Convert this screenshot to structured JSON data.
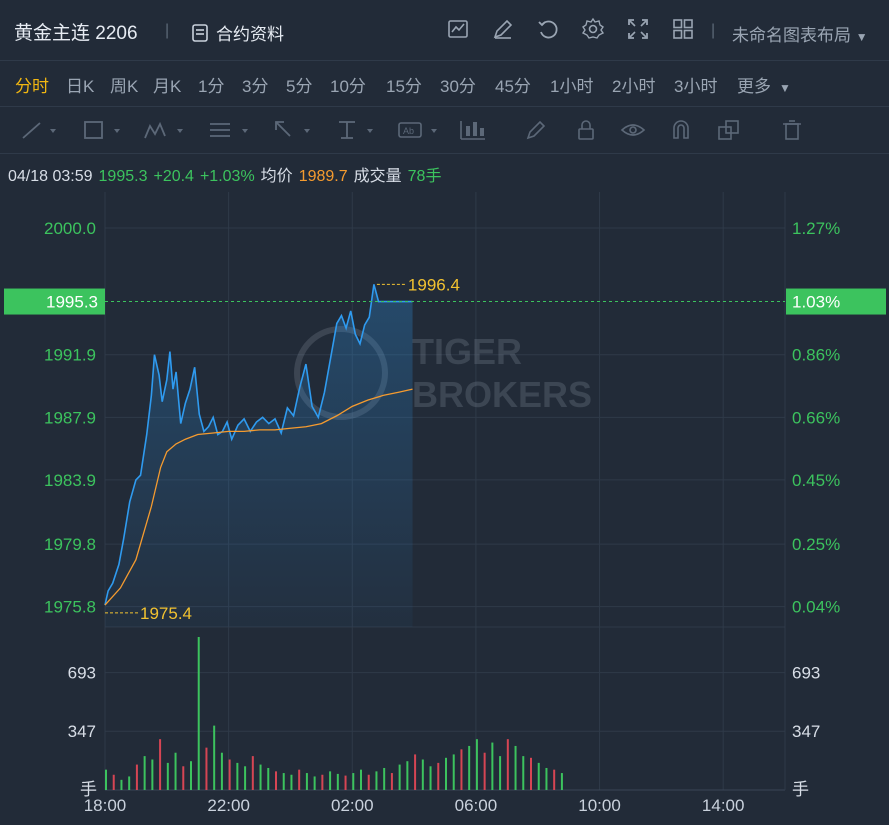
{
  "header": {
    "title": "黄金主连 2206",
    "contract_info": "合约资料",
    "layout_name": "未命名图表布局"
  },
  "periods": [
    "分时",
    "日K",
    "周K",
    "月K",
    "1分",
    "3分",
    "5分",
    "10分",
    "15分",
    "30分",
    "45分",
    "1小时",
    "2小时",
    "3小时",
    "更多"
  ],
  "active_period": "分时",
  "info_bar": {
    "datetime": "04/18 03:59",
    "price": "1995.3",
    "change": "+20.4",
    "change_pct": "+1.03%",
    "avg_label": "均价",
    "avg_value": "1989.7",
    "volume_label": "成交量",
    "volume_value": "78手"
  },
  "watermark": {
    "line1": "TIGER",
    "line2": "BROKERS"
  },
  "colors": {
    "up": "#3cc35e",
    "avg": "#f59b2f",
    "price_line": "#2f9bf0",
    "highlight": "#f2c230",
    "background": "#222b38"
  },
  "chart_data": {
    "type": "line",
    "price_axis": {
      "ticks": [
        "2000.0",
        "1991.9",
        "1987.9",
        "1983.9",
        "1979.8",
        "1975.8"
      ],
      "current": "1995.3"
    },
    "pct_axis": {
      "ticks": [
        "1.27%",
        "0.86%",
        "0.66%",
        "0.45%",
        "0.25%",
        "0.04%"
      ],
      "current": "1.03%"
    },
    "volume_axis": {
      "ticks": [
        "693",
        "347"
      ],
      "unit": "手"
    },
    "x_ticks": [
      "18:00",
      "22:00",
      "02:00",
      "06:00",
      "10:00",
      "14:00"
    ],
    "annotations": {
      "high": "1996.4",
      "low": "1975.4"
    },
    "x_range_hours": [
      0,
      22
    ],
    "ylim": [
      1974.5,
      2002.3
    ],
    "series": [
      {
        "name": "价格",
        "x": [
          0,
          0.1,
          0.25,
          0.45,
          0.6,
          0.8,
          1.0,
          1.15,
          1.35,
          1.5,
          1.6,
          1.75,
          1.85,
          2.0,
          2.1,
          2.2,
          2.3,
          2.45,
          2.6,
          2.75,
          2.9,
          3.05,
          3.2,
          3.35,
          3.5,
          3.65,
          3.8,
          3.95,
          4.1,
          4.3,
          4.5,
          4.7,
          4.9,
          5.1,
          5.3,
          5.5,
          5.7,
          5.9,
          6.1,
          6.3,
          6.5,
          6.7,
          6.9,
          7.1,
          7.3,
          7.5,
          7.65,
          7.8,
          7.95,
          8.1,
          8.25,
          8.4,
          8.55,
          8.7,
          8.85,
          9.0,
          9.2,
          9.4,
          9.6,
          9.8,
          9.95
        ],
        "values": [
          1975.9,
          1976.8,
          1977.3,
          1978.5,
          1980.1,
          1982.5,
          1983.9,
          1984.2,
          1986.8,
          1989.3,
          1991.9,
          1990.6,
          1988.9,
          1990.3,
          1992.1,
          1989.7,
          1990.8,
          1987.5,
          1988.8,
          1989.7,
          1991.1,
          1988.1,
          1987.0,
          1987.3,
          1987.9,
          1986.8,
          1987.0,
          1987.6,
          1986.5,
          1987.4,
          1987.8,
          1987.0,
          1987.6,
          1987.9,
          1987.5,
          1987.8,
          1986.9,
          1988.5,
          1988.0,
          1989.8,
          1991.3,
          1988.6,
          1987.9,
          1989.5,
          1991.7,
          1993.9,
          1994.4,
          1993.6,
          1994.7,
          1993.2,
          1992.6,
          1993.8,
          1994.3,
          1996.4,
          1995.3,
          1995.3,
          1995.3,
          1995.3,
          1995.3,
          1995.3,
          1995.3
        ]
      },
      {
        "name": "均价",
        "x": [
          0,
          0.5,
          1.0,
          1.5,
          1.8,
          2.0,
          2.3,
          2.6,
          3.0,
          3.5,
          4.0,
          4.5,
          5.0,
          5.5,
          6.0,
          6.5,
          7.0,
          7.5,
          8.0,
          8.5,
          9.0,
          9.5,
          9.95
        ],
        "values": [
          1975.9,
          1977.0,
          1978.8,
          1982.2,
          1984.7,
          1985.7,
          1986.2,
          1986.5,
          1986.8,
          1986.9,
          1987.0,
          1987.0,
          1987.1,
          1987.1,
          1987.2,
          1987.3,
          1987.5,
          1988.0,
          1988.6,
          1989.0,
          1989.3,
          1989.5,
          1989.7
        ]
      }
    ],
    "volume": {
      "x_start": 0,
      "x_step": 0.25,
      "values": [
        120,
        90,
        60,
        80,
        150,
        200,
        180,
        300,
        160,
        220,
        140,
        170,
        903,
        250,
        380,
        220,
        180,
        160,
        140,
        200,
        150,
        130,
        110,
        100,
        90,
        120,
        100,
        80,
        90,
        110,
        95,
        85,
        100,
        120,
        90,
        110,
        130,
        100,
        150,
        170,
        210,
        180,
        140,
        160,
        190,
        210,
        240,
        260,
        300,
        220,
        280,
        200,
        300,
        260,
        200,
        190,
        160,
        130,
        120,
        100
      ]
    }
  }
}
